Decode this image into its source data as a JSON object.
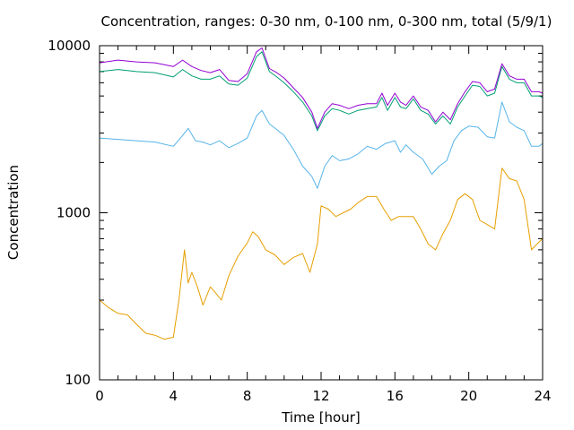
{
  "chart_data": {
    "type": "line",
    "title": "Concentration, ranges: 0-30 nm, 0-100 nm, 0-300 nm, total (5/9/1)",
    "xlabel": "Time [hour]",
    "ylabel": "Concentration",
    "xlim": [
      0,
      24
    ],
    "ylim": [
      100,
      10000
    ],
    "y_scale": "log",
    "x_ticks": [
      0,
      4,
      8,
      12,
      16,
      20,
      24
    ],
    "x_tick_labels": [
      "0",
      "4",
      "8",
      "12",
      "16",
      "20",
      "24"
    ],
    "y_ticks": [
      100,
      1000,
      10000
    ],
    "y_tick_labels": [
      "100",
      "1000",
      "10000"
    ],
    "grid": false,
    "legend": "none",
    "series": [
      {
        "color": "#e69f00",
        "x": [
          0,
          0.5,
          1,
          1.5,
          2,
          2.5,
          3,
          3.5,
          4,
          4.3,
          4.6,
          4.8,
          5,
          5.3,
          5.6,
          6,
          6.3,
          6.6,
          7,
          7.5,
          8,
          8.3,
          8.6,
          9,
          9.5,
          10,
          10.5,
          11,
          11.4,
          11.8,
          12,
          12.4,
          12.8,
          13.2,
          13.6,
          14,
          14.5,
          15,
          15.4,
          15.8,
          16.2,
          16.6,
          17,
          17.4,
          17.8,
          18.2,
          18.6,
          19,
          19.4,
          19.8,
          20.2,
          20.6,
          21,
          21.4,
          21.8,
          22.2,
          22.6,
          23,
          23.4,
          23.7,
          24
        ],
        "y": [
          300,
          270,
          250,
          245,
          215,
          190,
          185,
          175,
          180,
          300,
          600,
          380,
          440,
          360,
          280,
          360,
          330,
          300,
          420,
          550,
          660,
          770,
          720,
          600,
          560,
          490,
          540,
          570,
          440,
          650,
          1100,
          1050,
          950,
          1000,
          1050,
          1150,
          1250,
          1250,
          1050,
          900,
          950,
          950,
          950,
          800,
          650,
          600,
          750,
          900,
          1200,
          1300,
          1200,
          900,
          850,
          800,
          1850,
          1600,
          1550,
          1200,
          600,
          650,
          700
        ]
      },
      {
        "color": "#56b4e9",
        "x": [
          0,
          1,
          2,
          3,
          4,
          4.5,
          4.8,
          5.2,
          5.6,
          6,
          6.5,
          7,
          7.5,
          8,
          8.5,
          8.8,
          9.2,
          9.6,
          10,
          10.5,
          11,
          11.5,
          11.8,
          12.2,
          12.6,
          13,
          13.5,
          14,
          14.5,
          15,
          15.5,
          16,
          16.3,
          16.6,
          17,
          17.5,
          18,
          18.4,
          18.8,
          19.2,
          19.6,
          20,
          20.5,
          21,
          21.4,
          21.8,
          22.2,
          22.6,
          23,
          23.4,
          23.8,
          24
        ],
        "y": [
          2800,
          2750,
          2700,
          2650,
          2500,
          2900,
          3200,
          2700,
          2650,
          2550,
          2700,
          2450,
          2600,
          2800,
          3800,
          4100,
          3400,
          3150,
          2900,
          2400,
          1900,
          1650,
          1400,
          1900,
          2200,
          2050,
          2100,
          2250,
          2500,
          2400,
          2600,
          2700,
          2300,
          2550,
          2300,
          2100,
          1700,
          1900,
          2050,
          2700,
          3100,
          3300,
          3250,
          2850,
          2800,
          4600,
          3500,
          3250,
          3100,
          2500,
          2500,
          2600
        ]
      },
      {
        "color": "#009e73",
        "x": [
          0,
          1,
          2,
          3,
          4,
          4.5,
          5,
          5.5,
          6,
          6.5,
          7,
          7.5,
          8,
          8.5,
          8.8,
          9.2,
          9.6,
          10,
          10.5,
          11,
          11.5,
          11.8,
          12.2,
          12.6,
          13,
          13.5,
          14,
          14.5,
          15,
          15.3,
          15.6,
          16,
          16.3,
          16.6,
          17,
          17.4,
          17.8,
          18.2,
          18.6,
          19,
          19.4,
          19.8,
          20.2,
          20.6,
          21,
          21.4,
          21.8,
          22.2,
          22.6,
          23,
          23.4,
          23.8,
          24
        ],
        "y": [
          7000,
          7200,
          7000,
          6900,
          6500,
          7200,
          6600,
          6300,
          6300,
          6600,
          5900,
          5800,
          6400,
          8600,
          9200,
          7000,
          6500,
          6000,
          5300,
          4600,
          3800,
          3100,
          3800,
          4200,
          4100,
          3900,
          4100,
          4200,
          4300,
          4900,
          4100,
          4900,
          4300,
          4200,
          4800,
          4100,
          3900,
          3400,
          3800,
          3400,
          4300,
          5000,
          5800,
          5700,
          5000,
          5200,
          7500,
          6300,
          6000,
          6000,
          5000,
          5000,
          4900
        ]
      },
      {
        "color": "#9400d3",
        "x": [
          0,
          1,
          2,
          3,
          4,
          4.5,
          5,
          5.5,
          6,
          6.5,
          7,
          7.5,
          8,
          8.5,
          8.8,
          9.2,
          9.6,
          10,
          10.5,
          11,
          11.5,
          11.8,
          12.2,
          12.6,
          13,
          13.5,
          14,
          14.5,
          15,
          15.3,
          15.6,
          16,
          16.3,
          16.6,
          17,
          17.4,
          17.8,
          18.2,
          18.6,
          19,
          19.4,
          19.8,
          20.2,
          20.6,
          21,
          21.4,
          21.8,
          22.2,
          22.6,
          23,
          23.4,
          23.8,
          24
        ],
        "y": [
          7900,
          8200,
          8000,
          7900,
          7500,
          8200,
          7500,
          7100,
          6900,
          7200,
          6200,
          6100,
          6800,
          9200,
          9700,
          7300,
          6900,
          6400,
          5600,
          4900,
          4000,
          3200,
          4000,
          4500,
          4400,
          4200,
          4400,
          4500,
          4500,
          5200,
          4400,
          5200,
          4600,
          4400,
          5000,
          4300,
          4100,
          3500,
          4000,
          3600,
          4500,
          5300,
          6100,
          6000,
          5300,
          5500,
          7800,
          6600,
          6300,
          6300,
          5300,
          5300,
          5200
        ]
      }
    ]
  }
}
